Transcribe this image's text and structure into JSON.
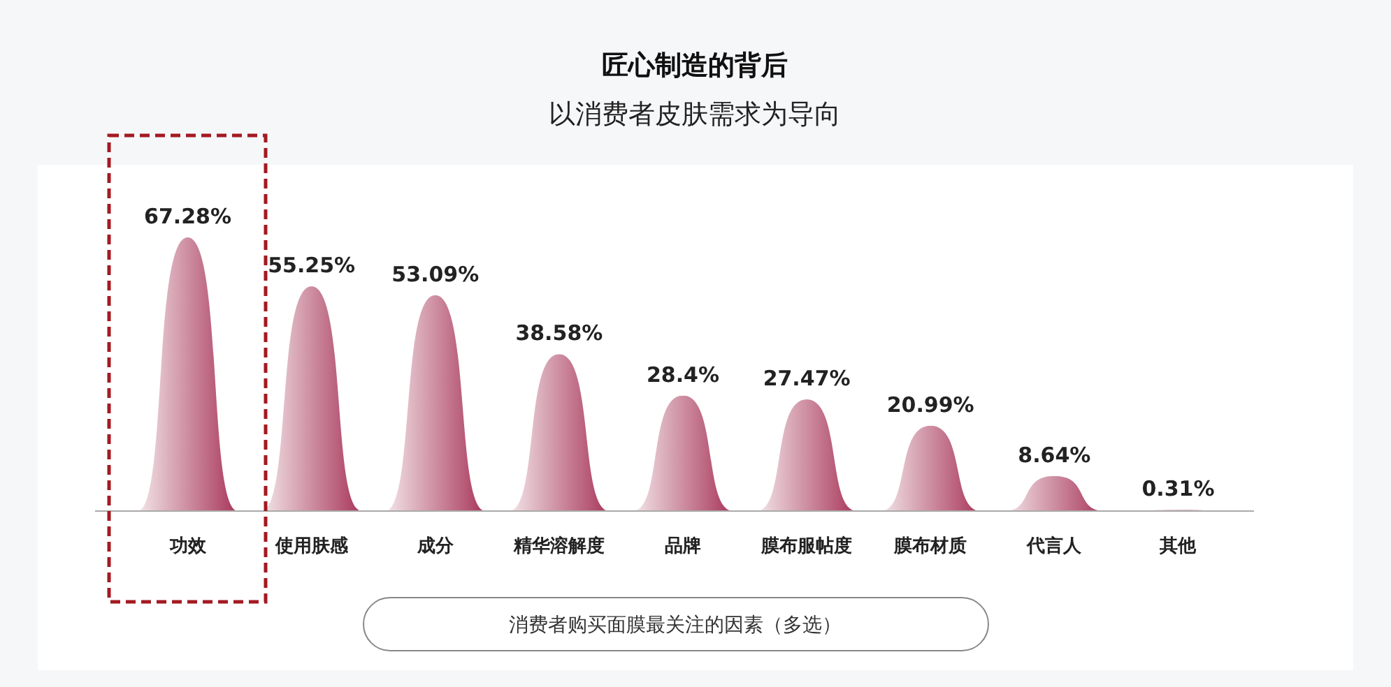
{
  "chart_data": {
    "type": "bar",
    "title": "匠心制造的背后",
    "subtitle": "以消费者皮肤需求为导向",
    "xlabel": "消费者购买面膜最关注的因素（多选）",
    "categories": [
      "功效",
      "使用肤感",
      "成分",
      "精华溶解度",
      "品牌",
      "膜布服帖度",
      "膜布材质",
      "代言人",
      "其他"
    ],
    "values": [
      67.28,
      55.25,
      53.09,
      38.58,
      28.4,
      27.47,
      20.99,
      8.64,
      0.31
    ],
    "value_labels": [
      "67.28%",
      "55.25%",
      "53.09%",
      "38.58%",
      "28.4%",
      "27.47%",
      "20.99%",
      "8.64%",
      "0.31%"
    ],
    "color": "#a8365a"
  }
}
